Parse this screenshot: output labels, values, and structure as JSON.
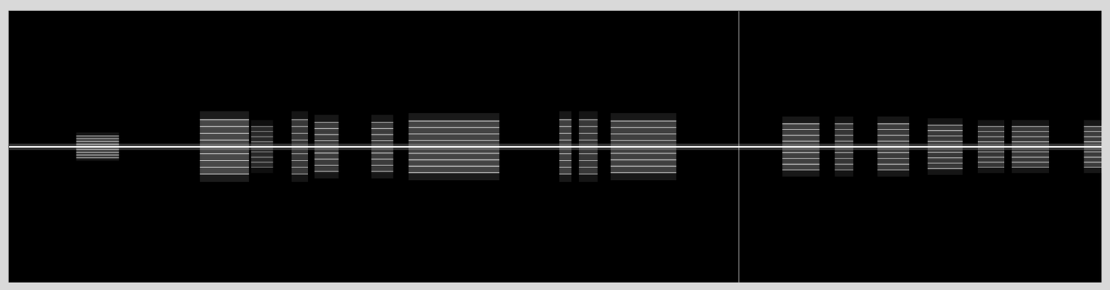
{
  "chart_data": {
    "type": "spectrogram",
    "tick_labels": false,
    "xlim": [
      0,
      100
    ],
    "ylim": [
      -1,
      1
    ],
    "carrier": 0,
    "spikes": [
      66.8
    ],
    "bursts": [
      {
        "start": 6.2,
        "end": 10.1,
        "bandwidth": 0.08,
        "level": 0.7
      },
      {
        "start": 17.5,
        "end": 22.0,
        "bandwidth": 0.2,
        "level": 0.9
      },
      {
        "start": 22.2,
        "end": 24.2,
        "bandwidth": 0.15,
        "level": 0.5
      },
      {
        "start": 25.9,
        "end": 27.4,
        "bandwidth": 0.2,
        "level": 0.7
      },
      {
        "start": 28.0,
        "end": 30.2,
        "bandwidth": 0.18,
        "level": 0.75
      },
      {
        "start": 33.2,
        "end": 35.2,
        "bandwidth": 0.18,
        "level": 0.75
      },
      {
        "start": 36.6,
        "end": 44.9,
        "bandwidth": 0.19,
        "level": 0.85
      },
      {
        "start": 50.4,
        "end": 51.5,
        "bandwidth": 0.2,
        "level": 0.8
      },
      {
        "start": 52.2,
        "end": 53.9,
        "bandwidth": 0.2,
        "level": 0.7
      },
      {
        "start": 55.1,
        "end": 61.1,
        "bandwidth": 0.19,
        "level": 0.8
      },
      {
        "start": 70.8,
        "end": 74.2,
        "bandwidth": 0.17,
        "level": 0.8
      },
      {
        "start": 75.6,
        "end": 77.3,
        "bandwidth": 0.17,
        "level": 0.65
      },
      {
        "start": 79.5,
        "end": 82.4,
        "bandwidth": 0.17,
        "level": 0.75
      },
      {
        "start": 84.1,
        "end": 87.3,
        "bandwidth": 0.16,
        "level": 0.7
      },
      {
        "start": 88.7,
        "end": 91.1,
        "bandwidth": 0.15,
        "level": 0.65
      },
      {
        "start": 91.8,
        "end": 95.2,
        "bandwidth": 0.15,
        "level": 0.7
      },
      {
        "start": 98.4,
        "end": 100,
        "bandwidth": 0.15,
        "level": 0.75
      }
    ]
  }
}
